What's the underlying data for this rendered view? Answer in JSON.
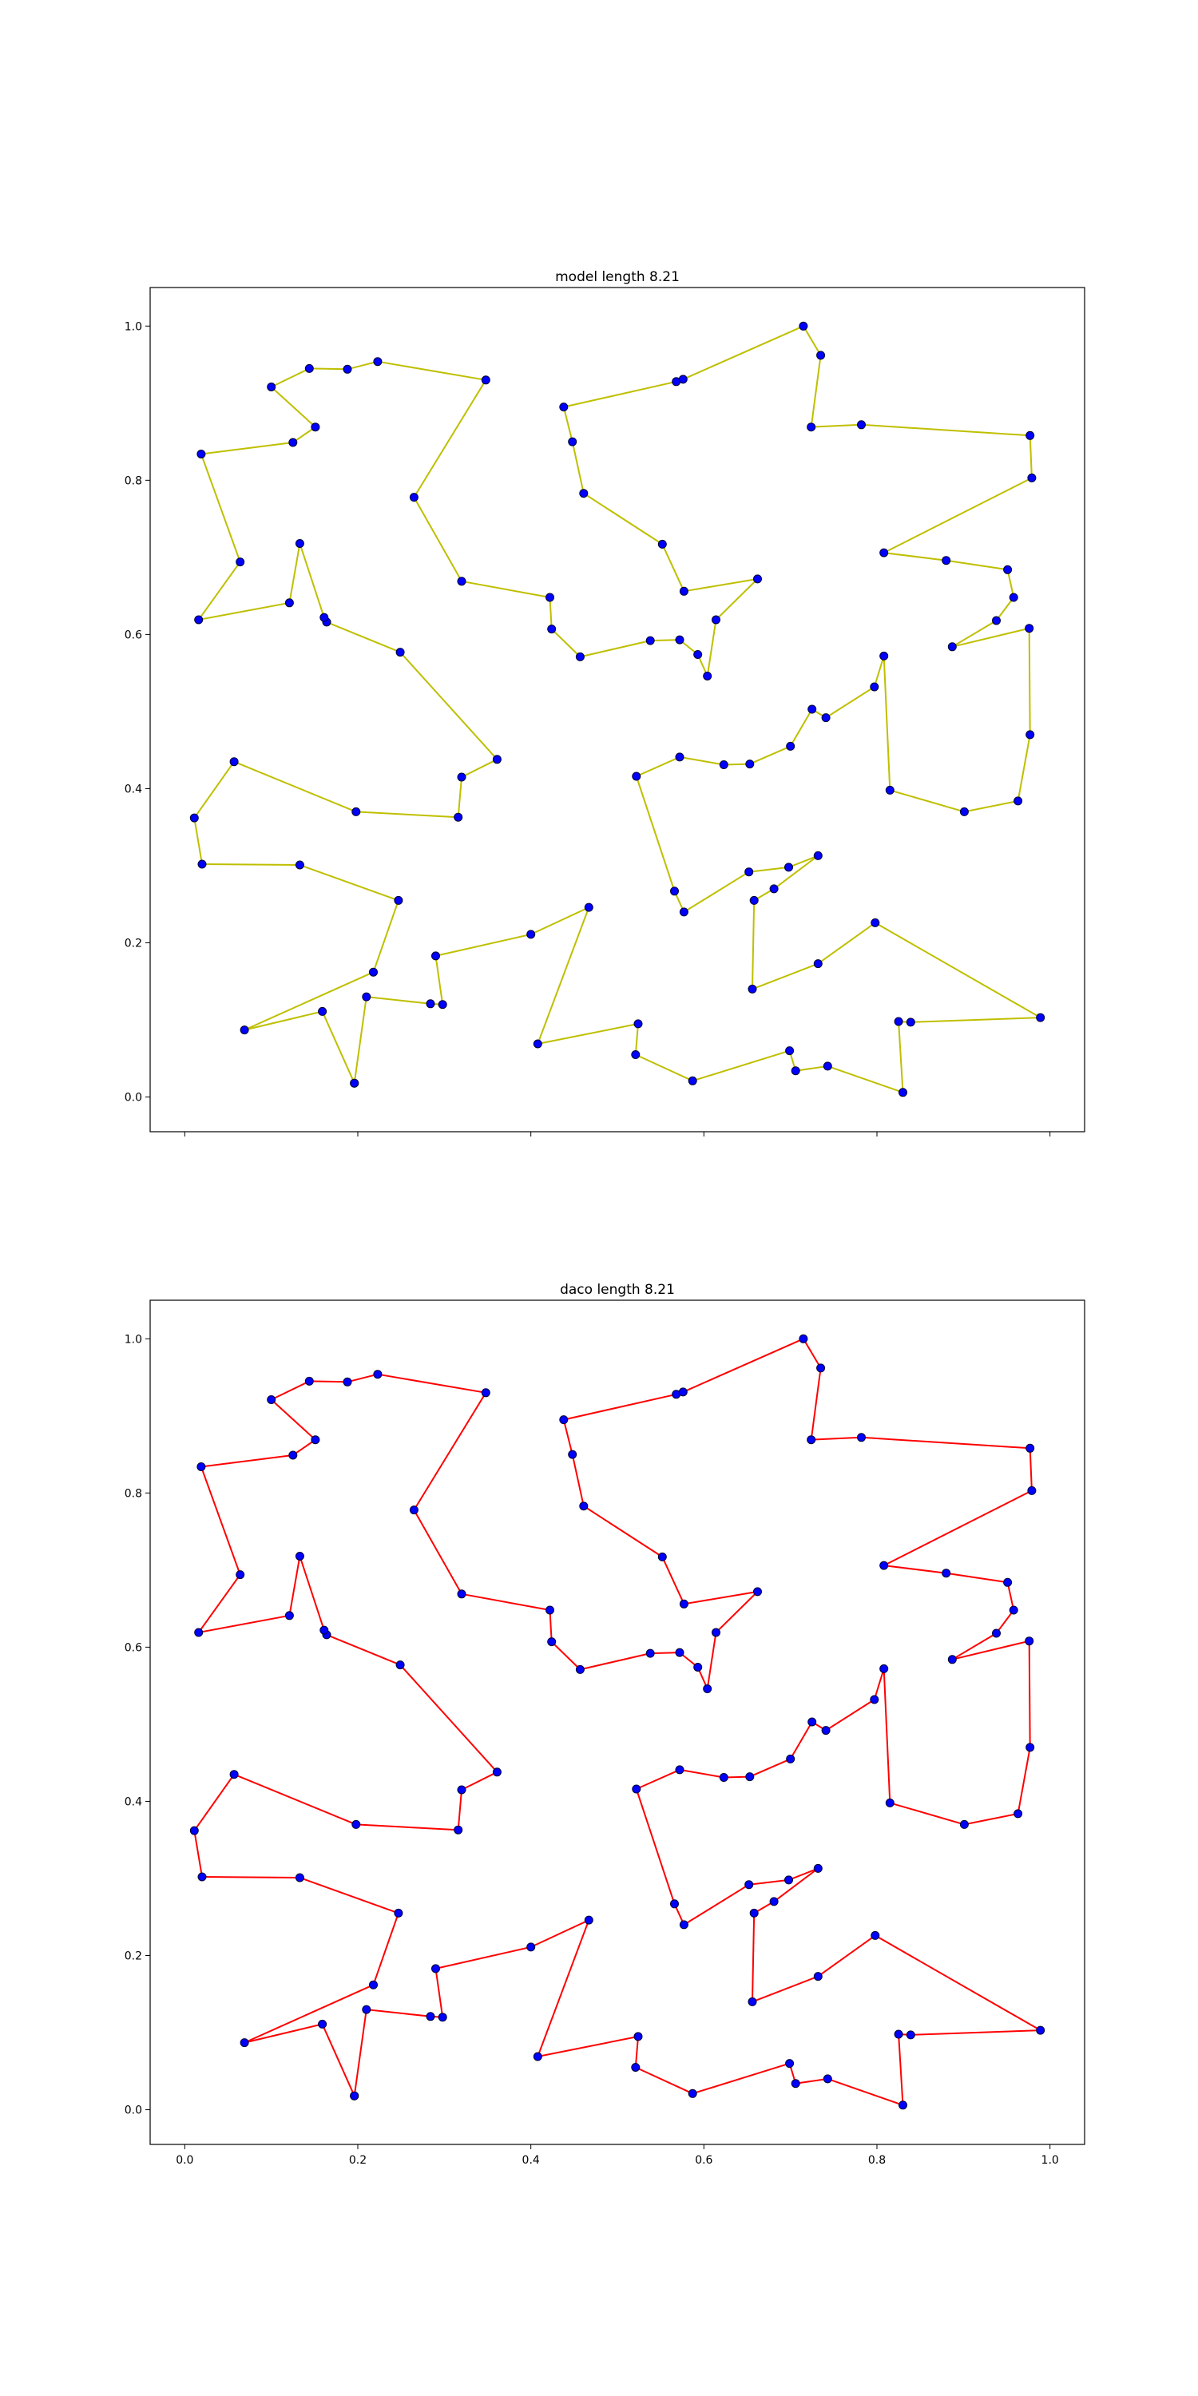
{
  "chart_data": [
    {
      "type": "line",
      "title": "model length 8.21",
      "xlabel": "",
      "ylabel": "",
      "xlim": [
        -0.04,
        1.04
      ],
      "ylim": [
        -0.045,
        1.05
      ],
      "xticks": [
        0.0,
        0.2,
        0.4,
        0.6,
        0.8,
        1.0
      ],
      "xtick_labels_shown": false,
      "yticks": [
        0.0,
        0.2,
        0.4,
        0.6,
        0.8,
        1.0
      ],
      "grid": false,
      "line_color": "#bfbf00",
      "marker_color": "#0000ff",
      "series": [
        {
          "x": [
            0.196,
            0.159,
            0.069,
            0.218,
            0.247,
            0.133,
            0.02,
            0.011,
            0.057,
            0.198,
            0.316,
            0.32,
            0.361,
            0.249,
            0.164,
            0.161,
            0.133,
            0.121,
            0.016,
            0.064,
            0.019,
            0.125,
            0.151,
            0.1,
            0.144,
            0.188,
            0.223,
            0.348,
            0.265,
            0.32,
            0.422,
            0.424,
            0.457,
            0.538,
            0.572,
            0.593,
            0.604,
            0.614,
            0.662,
            0.577,
            0.552,
            0.461,
            0.448,
            0.438,
            0.568,
            0.576,
            0.715,
            0.735,
            0.724,
            0.782,
            0.977,
            0.979,
            0.808,
            0.88,
            0.951,
            0.958,
            0.938,
            0.887,
            0.976,
            0.977,
            0.963,
            0.901,
            0.815,
            0.808,
            0.797,
            0.741,
            0.725,
            0.7,
            0.653,
            0.623,
            0.572,
            0.522,
            0.566,
            0.577,
            0.652,
            0.698,
            0.732,
            0.681,
            0.658,
            0.656,
            0.732,
            0.798,
            0.989,
            0.839,
            0.825,
            0.83,
            0.743,
            0.706,
            0.699,
            0.587,
            0.521,
            0.524,
            0.408,
            0.467,
            0.4,
            0.29,
            0.298,
            0.284,
            0.21,
            0.196
          ],
          "y": [
            0.018,
            0.111,
            0.087,
            0.162,
            0.255,
            0.301,
            0.302,
            0.362,
            0.435,
            0.37,
            0.363,
            0.415,
            0.438,
            0.577,
            0.616,
            0.622,
            0.718,
            0.641,
            0.619,
            0.694,
            0.834,
            0.849,
            0.869,
            0.921,
            0.945,
            0.944,
            0.954,
            0.93,
            0.778,
            0.669,
            0.648,
            0.607,
            0.571,
            0.592,
            0.593,
            0.574,
            0.546,
            0.619,
            0.672,
            0.656,
            0.717,
            0.783,
            0.85,
            0.895,
            0.928,
            0.931,
            1.0,
            0.962,
            0.869,
            0.872,
            0.858,
            0.803,
            0.706,
            0.696,
            0.684,
            0.648,
            0.618,
            0.584,
            0.608,
            0.47,
            0.384,
            0.37,
            0.398,
            0.572,
            0.532,
            0.492,
            0.503,
            0.455,
            0.432,
            0.431,
            0.441,
            0.416,
            0.267,
            0.24,
            0.292,
            0.298,
            0.313,
            0.27,
            0.255,
            0.14,
            0.173,
            0.226,
            0.103,
            0.097,
            0.098,
            0.006,
            0.04,
            0.034,
            0.06,
            0.021,
            0.055,
            0.095,
            0.069,
            0.246,
            0.211,
            0.183,
            0.12,
            0.121,
            0.13,
            0.018
          ]
        }
      ]
    },
    {
      "type": "line",
      "title": "daco length 8.21",
      "xlabel": "",
      "ylabel": "",
      "xlim": [
        -0.04,
        1.04
      ],
      "ylim": [
        -0.045,
        1.05
      ],
      "xticks": [
        0.0,
        0.2,
        0.4,
        0.6,
        0.8,
        1.0
      ],
      "xtick_labels_shown": true,
      "yticks": [
        0.0,
        0.2,
        0.4,
        0.6,
        0.8,
        1.0
      ],
      "grid": false,
      "line_color": "#ff0000",
      "marker_color": "#0000ff",
      "series": [
        {
          "x": [
            0.196,
            0.159,
            0.069,
            0.218,
            0.247,
            0.133,
            0.02,
            0.011,
            0.057,
            0.198,
            0.316,
            0.32,
            0.361,
            0.249,
            0.164,
            0.161,
            0.133,
            0.121,
            0.016,
            0.064,
            0.019,
            0.125,
            0.151,
            0.1,
            0.144,
            0.188,
            0.223,
            0.348,
            0.265,
            0.32,
            0.422,
            0.424,
            0.457,
            0.538,
            0.572,
            0.593,
            0.604,
            0.614,
            0.662,
            0.577,
            0.552,
            0.461,
            0.448,
            0.438,
            0.568,
            0.576,
            0.715,
            0.735,
            0.724,
            0.782,
            0.977,
            0.979,
            0.808,
            0.88,
            0.951,
            0.958,
            0.938,
            0.887,
            0.976,
            0.977,
            0.963,
            0.901,
            0.815,
            0.808,
            0.797,
            0.741,
            0.725,
            0.7,
            0.653,
            0.623,
            0.572,
            0.522,
            0.566,
            0.577,
            0.652,
            0.698,
            0.732,
            0.681,
            0.658,
            0.656,
            0.732,
            0.798,
            0.989,
            0.839,
            0.825,
            0.83,
            0.743,
            0.706,
            0.699,
            0.587,
            0.521,
            0.524,
            0.408,
            0.467,
            0.4,
            0.29,
            0.298,
            0.284,
            0.21,
            0.196
          ],
          "y": [
            0.018,
            0.111,
            0.087,
            0.162,
            0.255,
            0.301,
            0.302,
            0.362,
            0.435,
            0.37,
            0.363,
            0.415,
            0.438,
            0.577,
            0.616,
            0.622,
            0.718,
            0.641,
            0.619,
            0.694,
            0.834,
            0.849,
            0.869,
            0.921,
            0.945,
            0.944,
            0.954,
            0.93,
            0.778,
            0.669,
            0.648,
            0.607,
            0.571,
            0.592,
            0.593,
            0.574,
            0.546,
            0.619,
            0.672,
            0.656,
            0.717,
            0.783,
            0.85,
            0.895,
            0.928,
            0.931,
            1.0,
            0.962,
            0.869,
            0.872,
            0.858,
            0.803,
            0.706,
            0.696,
            0.684,
            0.648,
            0.618,
            0.584,
            0.608,
            0.47,
            0.384,
            0.37,
            0.398,
            0.572,
            0.532,
            0.492,
            0.503,
            0.455,
            0.432,
            0.431,
            0.441,
            0.416,
            0.267,
            0.24,
            0.292,
            0.298,
            0.313,
            0.27,
            0.255,
            0.14,
            0.173,
            0.226,
            0.103,
            0.097,
            0.098,
            0.006,
            0.04,
            0.034,
            0.06,
            0.021,
            0.055,
            0.095,
            0.069,
            0.246,
            0.211,
            0.183,
            0.12,
            0.121,
            0.13,
            0.018
          ]
        }
      ]
    }
  ]
}
